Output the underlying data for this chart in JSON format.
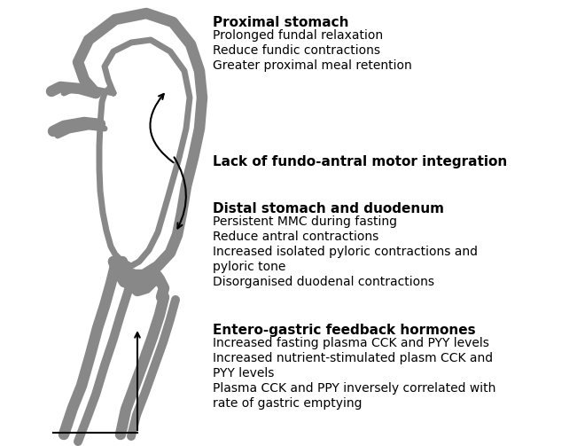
{
  "background_color": "#ffffff",
  "stomach_color": "#888888",
  "text_color": "#000000",
  "proximal_title": "Proximal stomach",
  "proximal_bullets": [
    "Prolonged fundal relaxation",
    "Reduce fundic contractions",
    "Greater proximal meal retention"
  ],
  "middle_title": "Lack of fundo-antral motor integration",
  "distal_title": "Distal stomach and duodenum",
  "distal_bullets": [
    "Persistent MMC during fasting",
    "Reduce antral contractions",
    "Increased isolated pyloric contractions and",
    "pyloric tone",
    "Disorganised duodenal contractions"
  ],
  "entero_title": "Entero-gastric feedback hormones",
  "entero_bullets": [
    "Increased fasting plasma CCK and PYY levels",
    "Increased nutrient-stimulated plasm CCK and",
    "PYY levels",
    "Plasma CCK and PPY inversely correlated with",
    "rate of gastric emptying"
  ],
  "title_fontsize": 11,
  "body_fontsize": 10,
  "fig_width": 6.6,
  "fig_height": 5.03
}
